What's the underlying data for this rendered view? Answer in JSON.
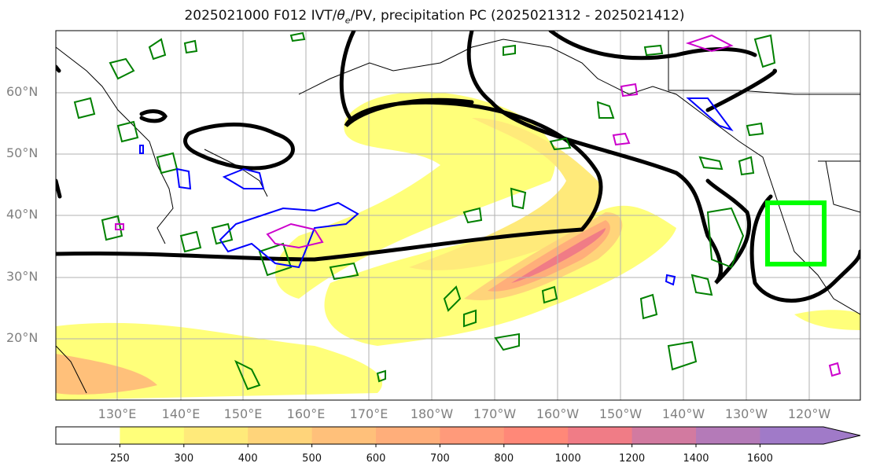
{
  "title_prefix": "2025021000 F012 IVT/",
  "title_theta": "θ",
  "title_sub": "e",
  "title_suffix": "/PV, precipitation PC (2025021312 - 2025021412)",
  "lat_labels": [
    "60°N",
    "50°N",
    "40°N",
    "30°N",
    "20°N"
  ],
  "lon_labels": [
    "130°E",
    "140°E",
    "150°E",
    "160°E",
    "170°E",
    "180°W",
    "170°W",
    "160°W",
    "150°W",
    "140°W",
    "130°W",
    "120°W"
  ],
  "colorbar": {
    "labels": [
      "250",
      "300",
      "400",
      "500",
      "600",
      "700",
      "800",
      "1000",
      "1200",
      "1400",
      "1600"
    ],
    "colors": [
      "#ffffff",
      "#ffff7a",
      "#ffea7a",
      "#ffd47a",
      "#ffc07a",
      "#ffae7a",
      "#ff9a7a",
      "#ff8878",
      "#f07c86",
      "#d27aa0",
      "#b47ab8",
      "#a07ac8"
    ]
  },
  "colors": {
    "box": "#00ff00",
    "theta_contour": "#000000",
    "pv_green": "#008000",
    "pv_blue": "#0000ff",
    "pv_magenta": "#cc00cc"
  }
}
